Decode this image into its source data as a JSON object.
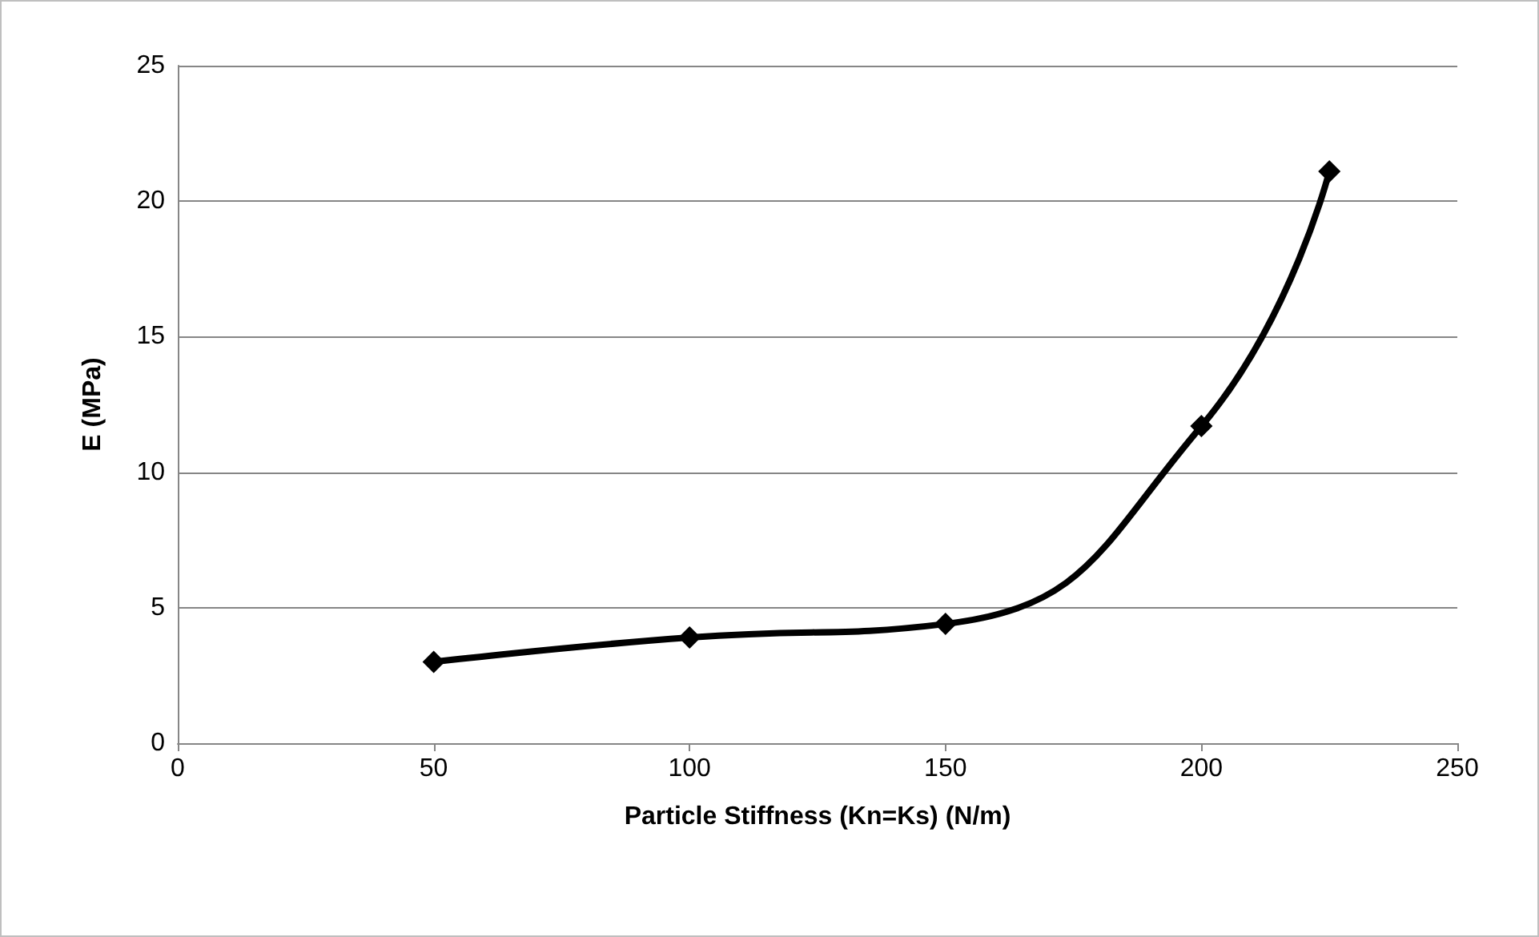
{
  "chart_data": {
    "type": "line",
    "xlabel": "Particle Stiffness (Kn=Ks) (N/m)",
    "ylabel": "E (MPa)",
    "x": [
      50,
      100,
      150,
      200,
      225
    ],
    "series": [
      {
        "color": "#000000",
        "values": [
          3.0,
          3.9,
          4.4,
          11.7,
          21.1
        ]
      }
    ],
    "xlim": [
      0,
      250
    ],
    "xticks": [
      0,
      50,
      100,
      150,
      200,
      250
    ],
    "ylim": [
      0,
      25
    ],
    "yticks": [
      0,
      5,
      10,
      15,
      20,
      25
    ],
    "grid": "y",
    "marker": "diamond",
    "line_style": "solid"
  }
}
